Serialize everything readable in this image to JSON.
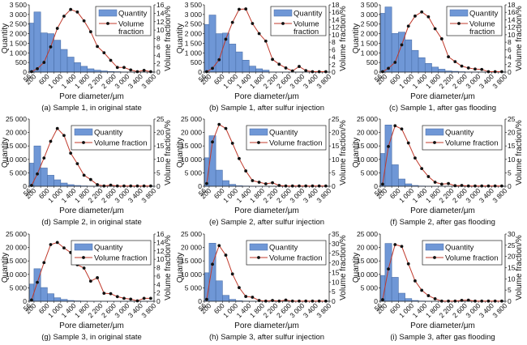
{
  "shared": {
    "xlabel": "Pore diameter/μm",
    "ylabel_left": "Quantity",
    "ylabel_right": "Volume fraction/%",
    "x_tick_labels": [
      "56",
      "200",
      "600",
      "1 000",
      "1 400",
      "1 800",
      "2 200",
      "2 600",
      "3 000",
      "3 400",
      "3 800"
    ],
    "bin_edges": [
      56,
      200,
      400,
      600,
      800,
      1000,
      1200,
      1400,
      1600,
      1800,
      2000,
      2200,
      2400,
      2600,
      2800,
      3000,
      3200,
      3400,
      3600,
      3800
    ],
    "legend_quantity": "Quantity",
    "legend_volume": "Volume fraction",
    "colors": {
      "bar": "#6f97d6",
      "bar_edge": "#4a6fa8",
      "line": "#c0392b",
      "marker": "#111111"
    }
  },
  "chart_data": [
    {
      "type": "bar+line",
      "title": "(a) Sample 1, in original state",
      "ylim_left": [
        0,
        3500
      ],
      "yticks_left": [
        0,
        500,
        1000,
        1500,
        2000,
        2500,
        3000,
        3500
      ],
      "ytick_labels_left": [
        "0",
        "500",
        "1 000",
        "1 500",
        "2 000",
        "2 500",
        "3 000",
        "3 500"
      ],
      "ylim_right": [
        0,
        16
      ],
      "yticks_right": [
        0,
        2,
        4,
        6,
        8,
        10,
        12,
        14,
        16
      ],
      "quantity": [
        2550,
        3130,
        2040,
        2000,
        1660,
        1180,
        780,
        490,
        300,
        170,
        100,
        60,
        30,
        20,
        10,
        5,
        5,
        5,
        3
      ],
      "volume_fraction": [
        0.1,
        0.8,
        2.3,
        6.0,
        10.4,
        13.3,
        14.9,
        14.3,
        12.2,
        9.6,
        6.1,
        4.6,
        2.8,
        1.1,
        1.1,
        0.5,
        0.1,
        0.4,
        0.1
      ]
    },
    {
      "type": "bar+line",
      "title": "(b) Sample 1, after sulfur injection",
      "ylim_left": [
        0,
        3500
      ],
      "yticks_left": [
        0,
        500,
        1000,
        1500,
        2000,
        2500,
        3000,
        3500
      ],
      "ytick_labels_left": [
        "0",
        "500",
        "1 000",
        "1 500",
        "2 000",
        "2 500",
        "3 000",
        "3 500"
      ],
      "ylim_right": [
        0,
        18
      ],
      "yticks_right": [
        0,
        2,
        4,
        6,
        8,
        10,
        12,
        14,
        16,
        18
      ],
      "quantity": [
        2480,
        2970,
        2000,
        2030,
        1460,
        1050,
        620,
        310,
        170,
        100,
        5,
        5,
        5,
        3,
        3,
        2,
        2,
        1,
        1
      ],
      "volume_fraction": [
        0.1,
        1.0,
        3.3,
        8.8,
        13.3,
        16.8,
        16.9,
        13.0,
        10.3,
        8.3,
        3.4,
        2.1,
        1.1,
        0.3,
        1.5,
        0.4,
        0.1,
        0.1,
        0.1
      ]
    },
    {
      "type": "bar+line",
      "title": "(c) Sample 1, after gas flooding",
      "ylim_left": [
        0,
        3500
      ],
      "yticks_left": [
        0,
        500,
        1000,
        1500,
        2000,
        2500,
        3000,
        3500
      ],
      "ytick_labels_left": [
        "0",
        "500",
        "1 000",
        "1 500",
        "2 000",
        "2 500",
        "3 000",
        "3 500"
      ],
      "ylim_right": [
        0,
        18
      ],
      "yticks_right": [
        0,
        2,
        4,
        6,
        8,
        10,
        12,
        14,
        16,
        18
      ],
      "quantity": [
        3060,
        3390,
        2010,
        2080,
        1680,
        1130,
        750,
        450,
        260,
        150,
        60,
        40,
        20,
        10,
        10,
        5,
        5,
        5,
        3
      ],
      "volume_fraction": [
        0.1,
        1.0,
        2.6,
        7.3,
        12.3,
        15.0,
        16.1,
        14.8,
        11.6,
        8.9,
        4.1,
        2.8,
        1.6,
        1.1,
        0.8,
        0.7,
        0.1,
        0.1,
        0.1
      ]
    },
    {
      "type": "bar+line",
      "title": "(d) Sample 2, in original state",
      "ylim_left": [
        0,
        25000
      ],
      "yticks_left": [
        0,
        5000,
        10000,
        15000,
        20000,
        25000
      ],
      "ytick_labels_left": [
        "0",
        "5 000",
        "10 000",
        "15 000",
        "20 000",
        "25 000"
      ],
      "ylim_right": [
        0,
        25
      ],
      "yticks_right": [
        0,
        5,
        10,
        15,
        20,
        25
      ],
      "quantity": [
        8600,
        15000,
        6800,
        4100,
        2400,
        1200,
        600,
        300,
        150,
        80,
        40,
        20,
        10,
        5,
        5,
        3,
        2,
        2,
        1
      ],
      "volume_fraction": [
        0.3,
        4.6,
        10.5,
        16.7,
        21.5,
        18.9,
        12.3,
        8.4,
        4.1,
        2.5,
        0.6,
        0.1,
        0.4,
        0.1,
        0.1,
        0.1,
        0.1,
        0.1,
        0.1
      ]
    },
    {
      "type": "bar+line",
      "title": "(e) Sample 2, after sulfur injection",
      "ylim_left": [
        0,
        25000
      ],
      "yticks_left": [
        0,
        5000,
        10000,
        15000,
        20000,
        25000
      ],
      "ytick_labels_left": [
        "0",
        "5 000",
        "10 000",
        "15 000",
        "20 000",
        "25 000"
      ],
      "ylim_right": [
        0,
        25
      ],
      "yticks_right": [
        0,
        5,
        10,
        15,
        20,
        25
      ],
      "quantity": [
        10600,
        18800,
        6000,
        2100,
        700,
        200,
        100,
        50,
        20,
        10,
        5,
        3,
        2,
        1,
        1,
        1,
        1,
        1,
        1
      ],
      "volume_fraction": [
        1.0,
        16.5,
        23.0,
        21.5,
        16.0,
        10.3,
        5.7,
        2.1,
        1.5,
        0.9,
        1.3,
        0.3,
        0.1,
        0.1,
        0.1,
        0.1,
        0.1,
        0.1,
        0.1
      ]
    },
    {
      "type": "bar+line",
      "title": "(f) Sample 2, after gas flooding",
      "ylim_left": [
        0,
        25000
      ],
      "yticks_left": [
        0,
        5000,
        10000,
        15000,
        20000,
        25000
      ],
      "ytick_labels_left": [
        "0",
        "5 000",
        "10 000",
        "15 000",
        "20 000",
        "25 000"
      ],
      "ylim_right": [
        0,
        25
      ],
      "yticks_right": [
        0,
        5,
        10,
        15,
        20,
        25
      ],
      "quantity": [
        12200,
        22800,
        8000,
        2700,
        900,
        300,
        100,
        50,
        20,
        10,
        5,
        3,
        2,
        1,
        1,
        1,
        1,
        1,
        1
      ],
      "volume_fraction": [
        0.8,
        14.8,
        22.5,
        21.3,
        16.1,
        10.5,
        6.6,
        3.6,
        1.5,
        0.8,
        1.0,
        0.2,
        0.3,
        0.1,
        0.1,
        0.1,
        0.1,
        0.1,
        0.1
      ]
    },
    {
      "type": "bar+line",
      "title": "(g) Sample 3, in original state",
      "ylim_left": [
        0,
        25000
      ],
      "yticks_left": [
        0,
        5000,
        10000,
        15000,
        20000,
        25000
      ],
      "ytick_labels_left": [
        "0",
        "5 000",
        "10 000",
        "15 000",
        "20 000",
        "25 000"
      ],
      "ylim_right": [
        0,
        16
      ],
      "yticks_right": [
        0,
        2,
        4,
        6,
        8,
        10,
        12,
        14,
        16
      ],
      "quantity": [
        6400,
        12100,
        5100,
        2800,
        1300,
        700,
        300,
        150,
        80,
        40,
        20,
        10,
        5,
        3,
        2,
        1,
        1,
        1,
        1
      ],
      "volume_fraction": [
        0.3,
        4.5,
        9.2,
        13.5,
        14.0,
        12.7,
        11.6,
        8.7,
        7.9,
        4.8,
        5.6,
        1.9,
        1.8,
        1.1,
        0.7,
        0.5,
        0.1,
        0.7,
        0.7
      ]
    },
    {
      "type": "bar+line",
      "title": "(h) Sample 3, after sulfur injection",
      "ylim_left": [
        0,
        25000
      ],
      "yticks_left": [
        0,
        5000,
        10000,
        15000,
        20000,
        25000
      ],
      "ytick_labels_left": [
        "0",
        "5 000",
        "10 000",
        "15 000",
        "20 000",
        "25 000"
      ],
      "ylim_right": [
        0,
        35
      ],
      "yticks_right": [
        0,
        5,
        10,
        15,
        20,
        25,
        30,
        35
      ],
      "quantity": [
        10600,
        21600,
        7600,
        2200,
        700,
        200,
        80,
        40,
        20,
        10,
        5,
        3,
        2,
        1,
        1,
        1,
        1,
        1,
        1
      ],
      "volume_fraction": [
        1.0,
        19.3,
        29.0,
        24.0,
        14.2,
        7.1,
        2.5,
        2.1,
        0.4,
        0.1,
        0.4,
        0.1,
        0.6,
        0.1,
        0.1,
        0.1,
        0.1,
        0.1,
        0.1
      ]
    },
    {
      "type": "bar+line",
      "title": "(i) Sample 3, after gas flooding",
      "ylim_left": [
        0,
        25000
      ],
      "yticks_left": [
        0,
        5000,
        10000,
        15000,
        20000,
        25000
      ],
      "ytick_labels_left": [
        "0",
        "5 000",
        "10 000",
        "15 000",
        "20 000",
        "25 000"
      ],
      "ylim_right": [
        0,
        30
      ],
      "yticks_right": [
        0,
        5,
        10,
        15,
        20,
        25,
        30
      ],
      "quantity": [
        9600,
        21500,
        8900,
        3000,
        1000,
        300,
        100,
        50,
        20,
        10,
        5,
        3,
        2,
        1,
        1,
        1,
        1,
        1,
        1
      ],
      "volume_fraction": [
        0.7,
        14.4,
        25.3,
        24.5,
        16.7,
        9.1,
        4.9,
        2.5,
        1.1,
        0.1,
        0.1,
        0.1,
        0.4,
        0.5,
        0.1,
        0.1,
        0.1,
        0.1,
        0.1
      ]
    }
  ]
}
